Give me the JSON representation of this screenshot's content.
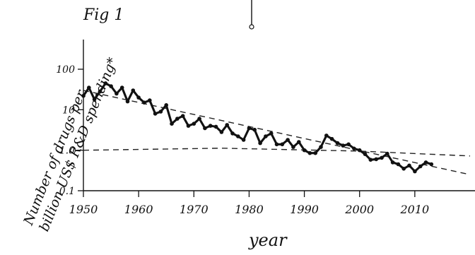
{
  "figure_label": "Fig 1",
  "chart_data": {
    "type": "line",
    "title": "",
    "xlabel": "year",
    "ylabel_line1": "Number of drugs per",
    "ylabel_line2": "billion US$ R&D spending*",
    "xlim": [
      1950,
      2020
    ],
    "ylim": [
      0.1,
      100
    ],
    "y_scale": "log",
    "grid": false,
    "legend": "none",
    "x_ticks": [
      1950,
      1960,
      1970,
      1980,
      1990,
      2000,
      2010
    ],
    "y_ticks": [
      {
        "value": 0.1,
        "label": "0.1"
      },
      {
        "value": 1.0,
        "label": "1.0"
      },
      {
        "value": 10,
        "label": "10"
      },
      {
        "value": 100,
        "label": "100"
      }
    ],
    "series": [
      {
        "x": [
          1950,
          1951,
          1952,
          1953,
          1954,
          1955,
          1956,
          1957,
          1958,
          1959,
          1960,
          1961,
          1962,
          1963,
          1964,
          1965,
          1966,
          1967,
          1968,
          1969,
          1970,
          1971,
          1972,
          1973,
          1974,
          1975,
          1976,
          1977,
          1978,
          1979,
          1980,
          1981,
          1982,
          1983,
          1984,
          1985,
          1986,
          1987,
          1988,
          1989,
          1990,
          1991,
          1992,
          1993,
          1994,
          1995,
          1996,
          1997,
          1998,
          1999,
          2000,
          2001,
          2002,
          2003,
          2004,
          2005,
          2006,
          2007,
          2008,
          2009,
          2010,
          2011,
          2012,
          2013
        ],
        "y": [
          22,
          35,
          18,
          28,
          45,
          38,
          25,
          35,
          16,
          30,
          20,
          15,
          17,
          8,
          9,
          13,
          4.5,
          6,
          7,
          4,
          4.5,
          6,
          3.5,
          4,
          3.8,
          2.8,
          4.2,
          2.6,
          2.2,
          1.8,
          3.5,
          3.2,
          1.5,
          2.2,
          2.6,
          1.4,
          1.4,
          1.8,
          1.2,
          1.6,
          1.0,
          0.85,
          0.85,
          1.2,
          2.3,
          1.9,
          1.5,
          1.3,
          1.4,
          1.1,
          1.0,
          0.8,
          0.58,
          0.6,
          0.65,
          0.82,
          0.5,
          0.45,
          0.35,
          0.42,
          0.3,
          0.4,
          0.5,
          0.45
        ]
      }
    ],
    "trend_lines": [
      {
        "style": "dashed",
        "x": [
          1950,
          2020
        ],
        "y": [
          30,
          0.25
        ]
      },
      {
        "style": "dashed",
        "x": [
          1950,
          1975,
          2000,
          2020
        ],
        "y": [
          1.0,
          1.12,
          0.95,
          0.72
        ]
      }
    ]
  }
}
